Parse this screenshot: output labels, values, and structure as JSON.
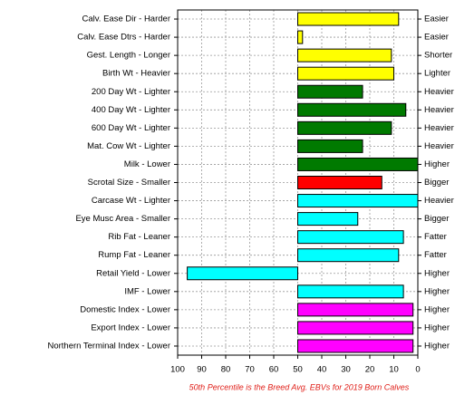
{
  "chart_data": {
    "type": "bar",
    "orientation": "horizontal",
    "categories": [
      "Calv. Ease Dir - Harder",
      "Calv. Ease Dtrs - Harder",
      "Gest. Length - Longer",
      "Birth Wt - Heavier",
      "200 Day Wt - Lighter",
      "400 Day Wt - Lighter",
      "600 Day Wt - Lighter",
      "Mat. Cow Wt - Lighter",
      "Milk - Lower",
      "Scrotal Size - Smaller",
      "Carcase Wt - Lighter",
      "Eye Musc Area - Smaller",
      "Rib Fat - Leaner",
      "Rump Fat - Leaner",
      "Retail Yield - Lower",
      "IMF - Lower",
      "Domestic Index - Lower",
      "Export Index - Lower",
      "Northern Terminal Index - Lower"
    ],
    "right_labels": [
      "Easier",
      "Easier",
      "Shorter",
      "Lighter",
      "Heavier",
      "Heavier",
      "Heavier",
      "Heavier",
      "Higher",
      "Bigger",
      "Heavier",
      "Bigger",
      "Fatter",
      "Fatter",
      "Higher",
      "Higher",
      "Higher",
      "Higher",
      "Higher"
    ],
    "values": [
      8,
      48,
      11,
      10,
      23,
      5,
      11,
      23,
      0,
      15,
      0,
      25,
      6,
      8,
      96,
      6,
      2,
      2,
      2
    ],
    "colors": [
      "#ffff00",
      "#ffff00",
      "#ffff00",
      "#ffff00",
      "#007a00",
      "#007a00",
      "#007a00",
      "#007a00",
      "#007a00",
      "#ff0000",
      "#00ffff",
      "#00ffff",
      "#00ffff",
      "#00ffff",
      "#00ffff",
      "#00ffff",
      "#ff00ff",
      "#ff00ff",
      "#ff00ff"
    ],
    "base": 50,
    "xlim": [
      100,
      0
    ],
    "xticks": [
      100,
      90,
      80,
      70,
      60,
      50,
      40,
      30,
      20,
      10,
      0
    ],
    "grid": true,
    "footnote": "50th Percentile is the Breed Avg. EBVs for 2019 Born Calves"
  }
}
